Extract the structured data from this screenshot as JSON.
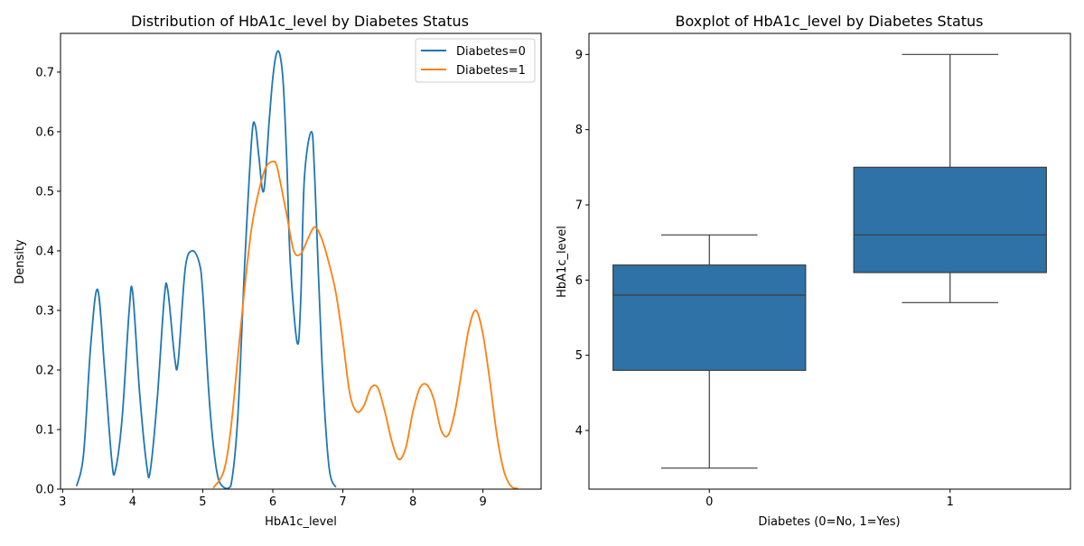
{
  "chart_data": [
    {
      "type": "line",
      "title": "Distribution of HbA1c_level by Diabetes Status",
      "xlabel": "HbA1c_level",
      "ylabel": "Density",
      "xlim": [
        2.97,
        9.83
      ],
      "ylim": [
        0,
        0.765
      ],
      "xticks": [
        3,
        4,
        5,
        6,
        7,
        8,
        9
      ],
      "yticks": [
        0.0,
        0.1,
        0.2,
        0.3,
        0.4,
        0.5,
        0.6,
        0.7
      ],
      "ytick_labels": [
        "0.0",
        "0.1",
        "0.2",
        "0.3",
        "0.4",
        "0.5",
        "0.6",
        "0.7"
      ],
      "legend_position": "top-right",
      "series": [
        {
          "name": "Diabetes=0",
          "color": "#1f77b4",
          "x": [
            3.2,
            3.3,
            3.4,
            3.5,
            3.6,
            3.7,
            3.75,
            3.85,
            3.95,
            4.0,
            4.1,
            4.2,
            4.25,
            4.35,
            4.45,
            4.5,
            4.6,
            4.65,
            4.75,
            4.85,
            4.95,
            5.0,
            5.1,
            5.2,
            5.3,
            5.4,
            5.5,
            5.6,
            5.7,
            5.75,
            5.8,
            5.87,
            5.95,
            6.0,
            6.05,
            6.1,
            6.15,
            6.2,
            6.25,
            6.35,
            6.4,
            6.45,
            6.55,
            6.6,
            6.7,
            6.8,
            6.9
          ],
          "y": [
            0.005,
            0.06,
            0.24,
            0.335,
            0.2,
            0.05,
            0.03,
            0.12,
            0.3,
            0.33,
            0.16,
            0.04,
            0.03,
            0.15,
            0.32,
            0.335,
            0.22,
            0.215,
            0.37,
            0.4,
            0.38,
            0.33,
            0.14,
            0.03,
            0.003,
            0.005,
            0.12,
            0.38,
            0.59,
            0.61,
            0.56,
            0.5,
            0.62,
            0.69,
            0.73,
            0.73,
            0.68,
            0.55,
            0.38,
            0.245,
            0.32,
            0.52,
            0.6,
            0.52,
            0.22,
            0.04,
            0.003
          ]
        },
        {
          "name": "Diabetes=1",
          "color": "#ff7f0e",
          "x": [
            5.15,
            5.3,
            5.4,
            5.5,
            5.6,
            5.7,
            5.8,
            5.9,
            6.0,
            6.05,
            6.1,
            6.2,
            6.3,
            6.4,
            6.5,
            6.6,
            6.7,
            6.8,
            6.9,
            7.0,
            7.1,
            7.2,
            7.3,
            7.4,
            7.5,
            7.6,
            7.7,
            7.8,
            7.9,
            8.0,
            8.1,
            8.2,
            8.3,
            8.4,
            8.5,
            8.6,
            8.7,
            8.8,
            8.9,
            9.0,
            9.1,
            9.2,
            9.3,
            9.4,
            9.5
          ],
          "y": [
            0.002,
            0.03,
            0.1,
            0.22,
            0.34,
            0.44,
            0.5,
            0.54,
            0.55,
            0.545,
            0.52,
            0.46,
            0.4,
            0.395,
            0.42,
            0.44,
            0.42,
            0.38,
            0.33,
            0.25,
            0.16,
            0.13,
            0.14,
            0.17,
            0.17,
            0.13,
            0.08,
            0.05,
            0.07,
            0.13,
            0.17,
            0.175,
            0.15,
            0.1,
            0.09,
            0.13,
            0.2,
            0.27,
            0.3,
            0.26,
            0.18,
            0.09,
            0.03,
            0.005,
            0.001
          ]
        }
      ]
    },
    {
      "type": "box",
      "title": "Boxplot of HbA1c_level by Diabetes Status",
      "xlabel": "Diabetes (0=No, 1=Yes)",
      "ylabel": "HbA1c_level",
      "ylim": [
        3.22,
        9.28
      ],
      "yticks": [
        4,
        5,
        6,
        7,
        8,
        9
      ],
      "categories": [
        "0",
        "1"
      ],
      "color": "#2e72a7",
      "boxes": [
        {
          "category": "0",
          "whisker_low": 3.5,
          "q1": 4.8,
          "median": 5.8,
          "q3": 6.2,
          "whisker_high": 6.6
        },
        {
          "category": "1",
          "whisker_low": 5.7,
          "q1": 6.1,
          "median": 6.6,
          "q3": 7.5,
          "whisker_high": 9.0
        }
      ]
    }
  ]
}
